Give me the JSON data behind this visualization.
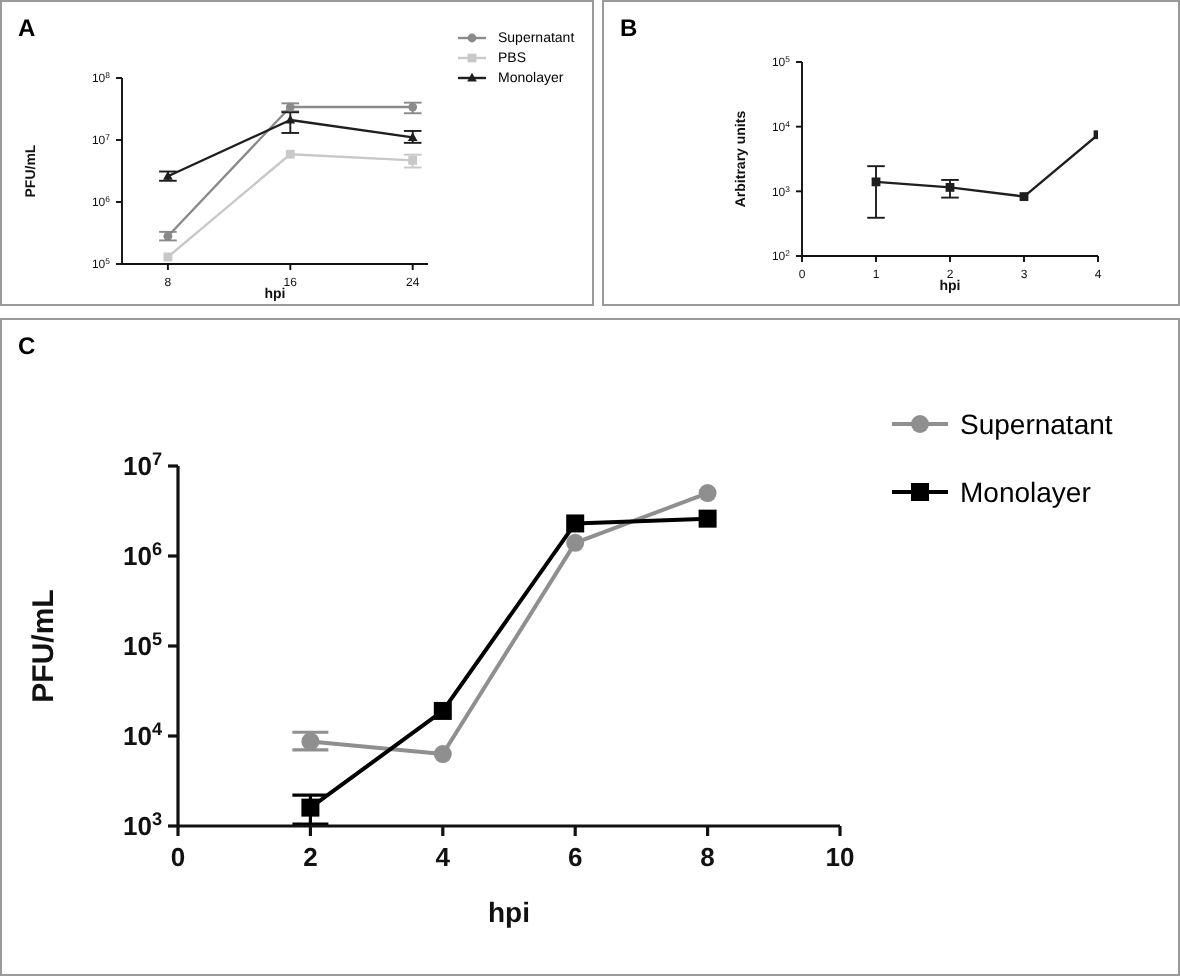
{
  "chart_data": [
    {
      "type": "line",
      "title": "A",
      "xlabel": "hpi",
      "ylabel": "PFU/mL",
      "x": [
        8,
        16,
        24
      ],
      "xlim": [
        5,
        25
      ],
      "xticks": [
        8,
        16,
        24
      ],
      "ylim": [
        100000,
        100000000
      ],
      "log": true,
      "yticks": [
        {
          "value": 100000,
          "label": "10$^{5}$"
        },
        {
          "value": 1000000,
          "label": "10$^{6}$"
        },
        {
          "value": 10000000,
          "label": "10$^{7}$"
        },
        {
          "value": 100000000,
          "label": "10$^{8}$"
        }
      ],
      "legend": "right",
      "grid": false,
      "series": [
        {
          "name": "Supernatant",
          "color": "#8a8a8a",
          "marker": "circle",
          "values": [
            280000,
            34000000,
            34000000
          ],
          "errors": [
            [
              240000,
              330000
            ],
            [
              29000000,
              39000000
            ],
            [
              27000000,
              40000000
            ]
          ]
        },
        {
          "name": "PBS",
          "color": "#c8c8c8",
          "marker": "square",
          "values": [
            130000,
            5900000,
            4700000
          ],
          "errors": [
            null,
            null,
            [
              3600000,
              5800000
            ]
          ]
        },
        {
          "name": "Monolayer",
          "color": "#1e1e1e",
          "marker": "triangle",
          "values": [
            2600000,
            21000000,
            11000000
          ],
          "errors": [
            [
              2200000,
              3100000
            ],
            [
              13000000,
              28000000
            ],
            [
              9000000,
              14000000
            ]
          ]
        }
      ]
    },
    {
      "type": "line",
      "title": "B",
      "xlabel": "hpi",
      "ylabel": "Arbitrary units",
      "x": [
        1,
        2,
        3,
        4
      ],
      "xlim": [
        0,
        4
      ],
      "xticks": [
        0,
        1,
        2,
        3,
        4
      ],
      "ylim": [
        100,
        100000
      ],
      "log": true,
      "yticks": [
        {
          "value": 100,
          "label": "10$^{2}$"
        },
        {
          "value": 1000,
          "label": "10$^{3}$"
        },
        {
          "value": 10000,
          "label": "10$^{4}$"
        },
        {
          "value": 100000,
          "label": "10$^{5}$"
        }
      ],
      "grid": false,
      "series": [
        {
          "color": "#1e1e1e",
          "marker": "square",
          "values": [
            1400,
            1150,
            830,
            7500
          ],
          "errors": [
            [
              390,
              2450
            ],
            [
              800,
              1500
            ],
            null,
            null
          ]
        }
      ]
    },
    {
      "type": "line",
      "title": "C",
      "xlabel": "hpi",
      "ylabel": "PFU/mL",
      "x": [
        2,
        4,
        6,
        8
      ],
      "xlim": [
        0,
        10
      ],
      "xticks": [
        0,
        2,
        4,
        6,
        8,
        10
      ],
      "ylim": [
        1000,
        10000000
      ],
      "log": true,
      "yticks": [
        {
          "value": 1000,
          "label": "10$^{3}$"
        },
        {
          "value": 10000,
          "label": "10$^{4}$"
        },
        {
          "value": 100000,
          "label": "10$^{5}$"
        },
        {
          "value": 1000000,
          "label": "10$^{6}$"
        },
        {
          "value": 10000000,
          "label": "10$^{7}$"
        }
      ],
      "legend": "right",
      "grid": false,
      "series": [
        {
          "name": "Supernatant",
          "color": "#8f8f8f",
          "marker": "circle",
          "values": [
            8700,
            6300,
            1400000,
            5000000
          ],
          "errors": [
            [
              7000,
              11000
            ],
            null,
            null,
            null
          ]
        },
        {
          "name": "Monolayer",
          "color": "#000000",
          "marker": "square",
          "values": [
            1600,
            19000,
            2300000,
            2600000
          ],
          "errors": [
            [
              1050,
              2200
            ],
            null,
            null,
            null
          ]
        }
      ]
    }
  ]
}
